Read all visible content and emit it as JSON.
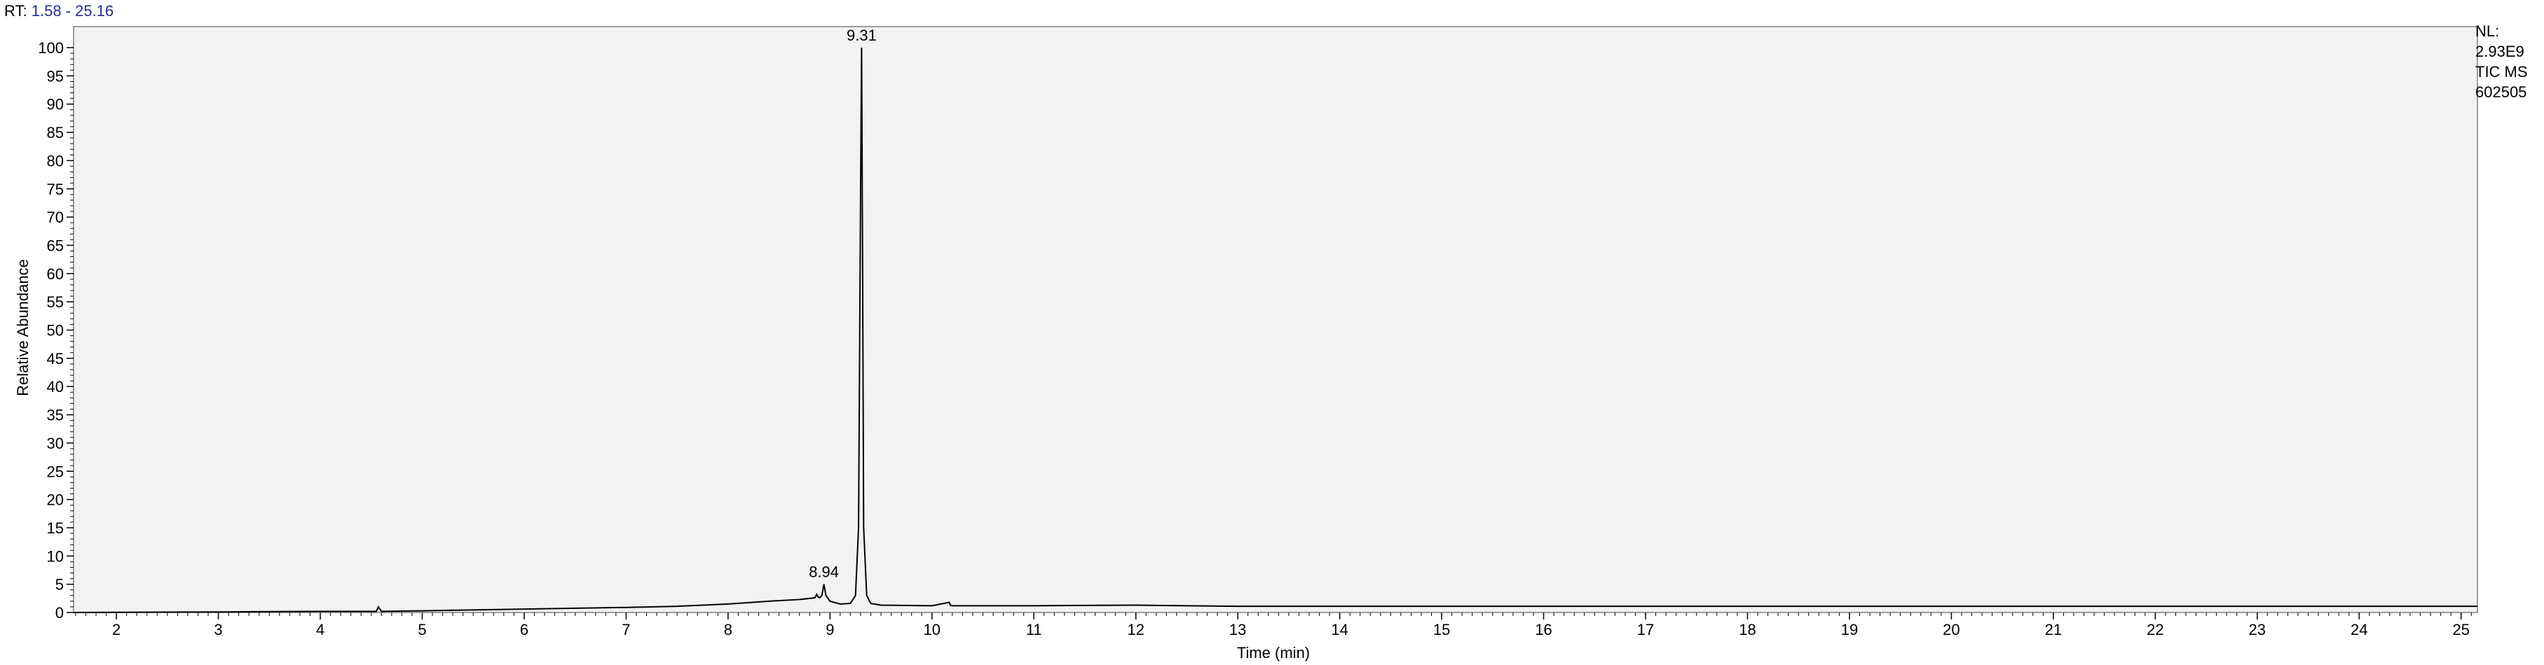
{
  "header": {
    "rt_prefix": "RT:",
    "rt_range": "1.58 - 25.16"
  },
  "side_info": {
    "nl_label": "NL:",
    "nl_value": "2.93E9",
    "scan_type": "TIC  MS",
    "sample_id": "602505"
  },
  "colors": {
    "plot_background": "#f2f2f2",
    "trace": "#000000",
    "rt_value": "#1f2f8f"
  },
  "chart_data": {
    "type": "line",
    "title": "",
    "xlabel": "Time (min)",
    "ylabel": "Relative Abundance",
    "xlim": [
      1.58,
      25.16
    ],
    "ylim": [
      0,
      100
    ],
    "xticks": [
      "2",
      "3",
      "4",
      "5",
      "6",
      "7",
      "8",
      "9",
      "10",
      "11",
      "12",
      "13",
      "14",
      "15",
      "16",
      "17",
      "18",
      "19",
      "20",
      "21",
      "22",
      "23",
      "24",
      "25"
    ],
    "yticks": [
      "0",
      "5",
      "10",
      "15",
      "20",
      "25",
      "30",
      "35",
      "40",
      "45",
      "50",
      "55",
      "60",
      "65",
      "70",
      "75",
      "80",
      "85",
      "90",
      "95",
      "100"
    ],
    "grid": false,
    "legend": "none",
    "series": [
      {
        "x": [
          1.58,
          3.0,
          4.0,
          4.55,
          4.57,
          4.6,
          5.0,
          6.0,
          7.0,
          7.5,
          8.0,
          8.4,
          8.7,
          8.85,
          8.87,
          8.88,
          8.9,
          8.92,
          8.94,
          8.96,
          8.98,
          9.0,
          9.1,
          9.2,
          9.25,
          9.28,
          9.3,
          9.31,
          9.32,
          9.33,
          9.36,
          9.4,
          9.5,
          10.0,
          10.17,
          10.18,
          10.2,
          11.0,
          12.0,
          12.5,
          13.0,
          15.0,
          20.0,
          25.16
        ],
        "y": [
          0,
          0.1,
          0.2,
          0.2,
          1.0,
          0.2,
          0.3,
          0.6,
          0.9,
          1.1,
          1.5,
          2.0,
          2.3,
          2.6,
          3.2,
          2.8,
          2.6,
          3.0,
          5.0,
          3.0,
          2.5,
          2.0,
          1.5,
          1.6,
          3.0,
          15.0,
          75.0,
          100.0,
          60.0,
          15.0,
          3.0,
          1.6,
          1.3,
          1.2,
          1.8,
          1.3,
          1.2,
          1.2,
          1.3,
          1.2,
          1.1,
          1.1,
          1.1,
          1.1
        ]
      }
    ],
    "annotations": [
      {
        "x": 9.31,
        "y": 100.0,
        "label": "9.31"
      },
      {
        "x": 8.94,
        "y": 5.0,
        "label": "8.94"
      }
    ]
  }
}
